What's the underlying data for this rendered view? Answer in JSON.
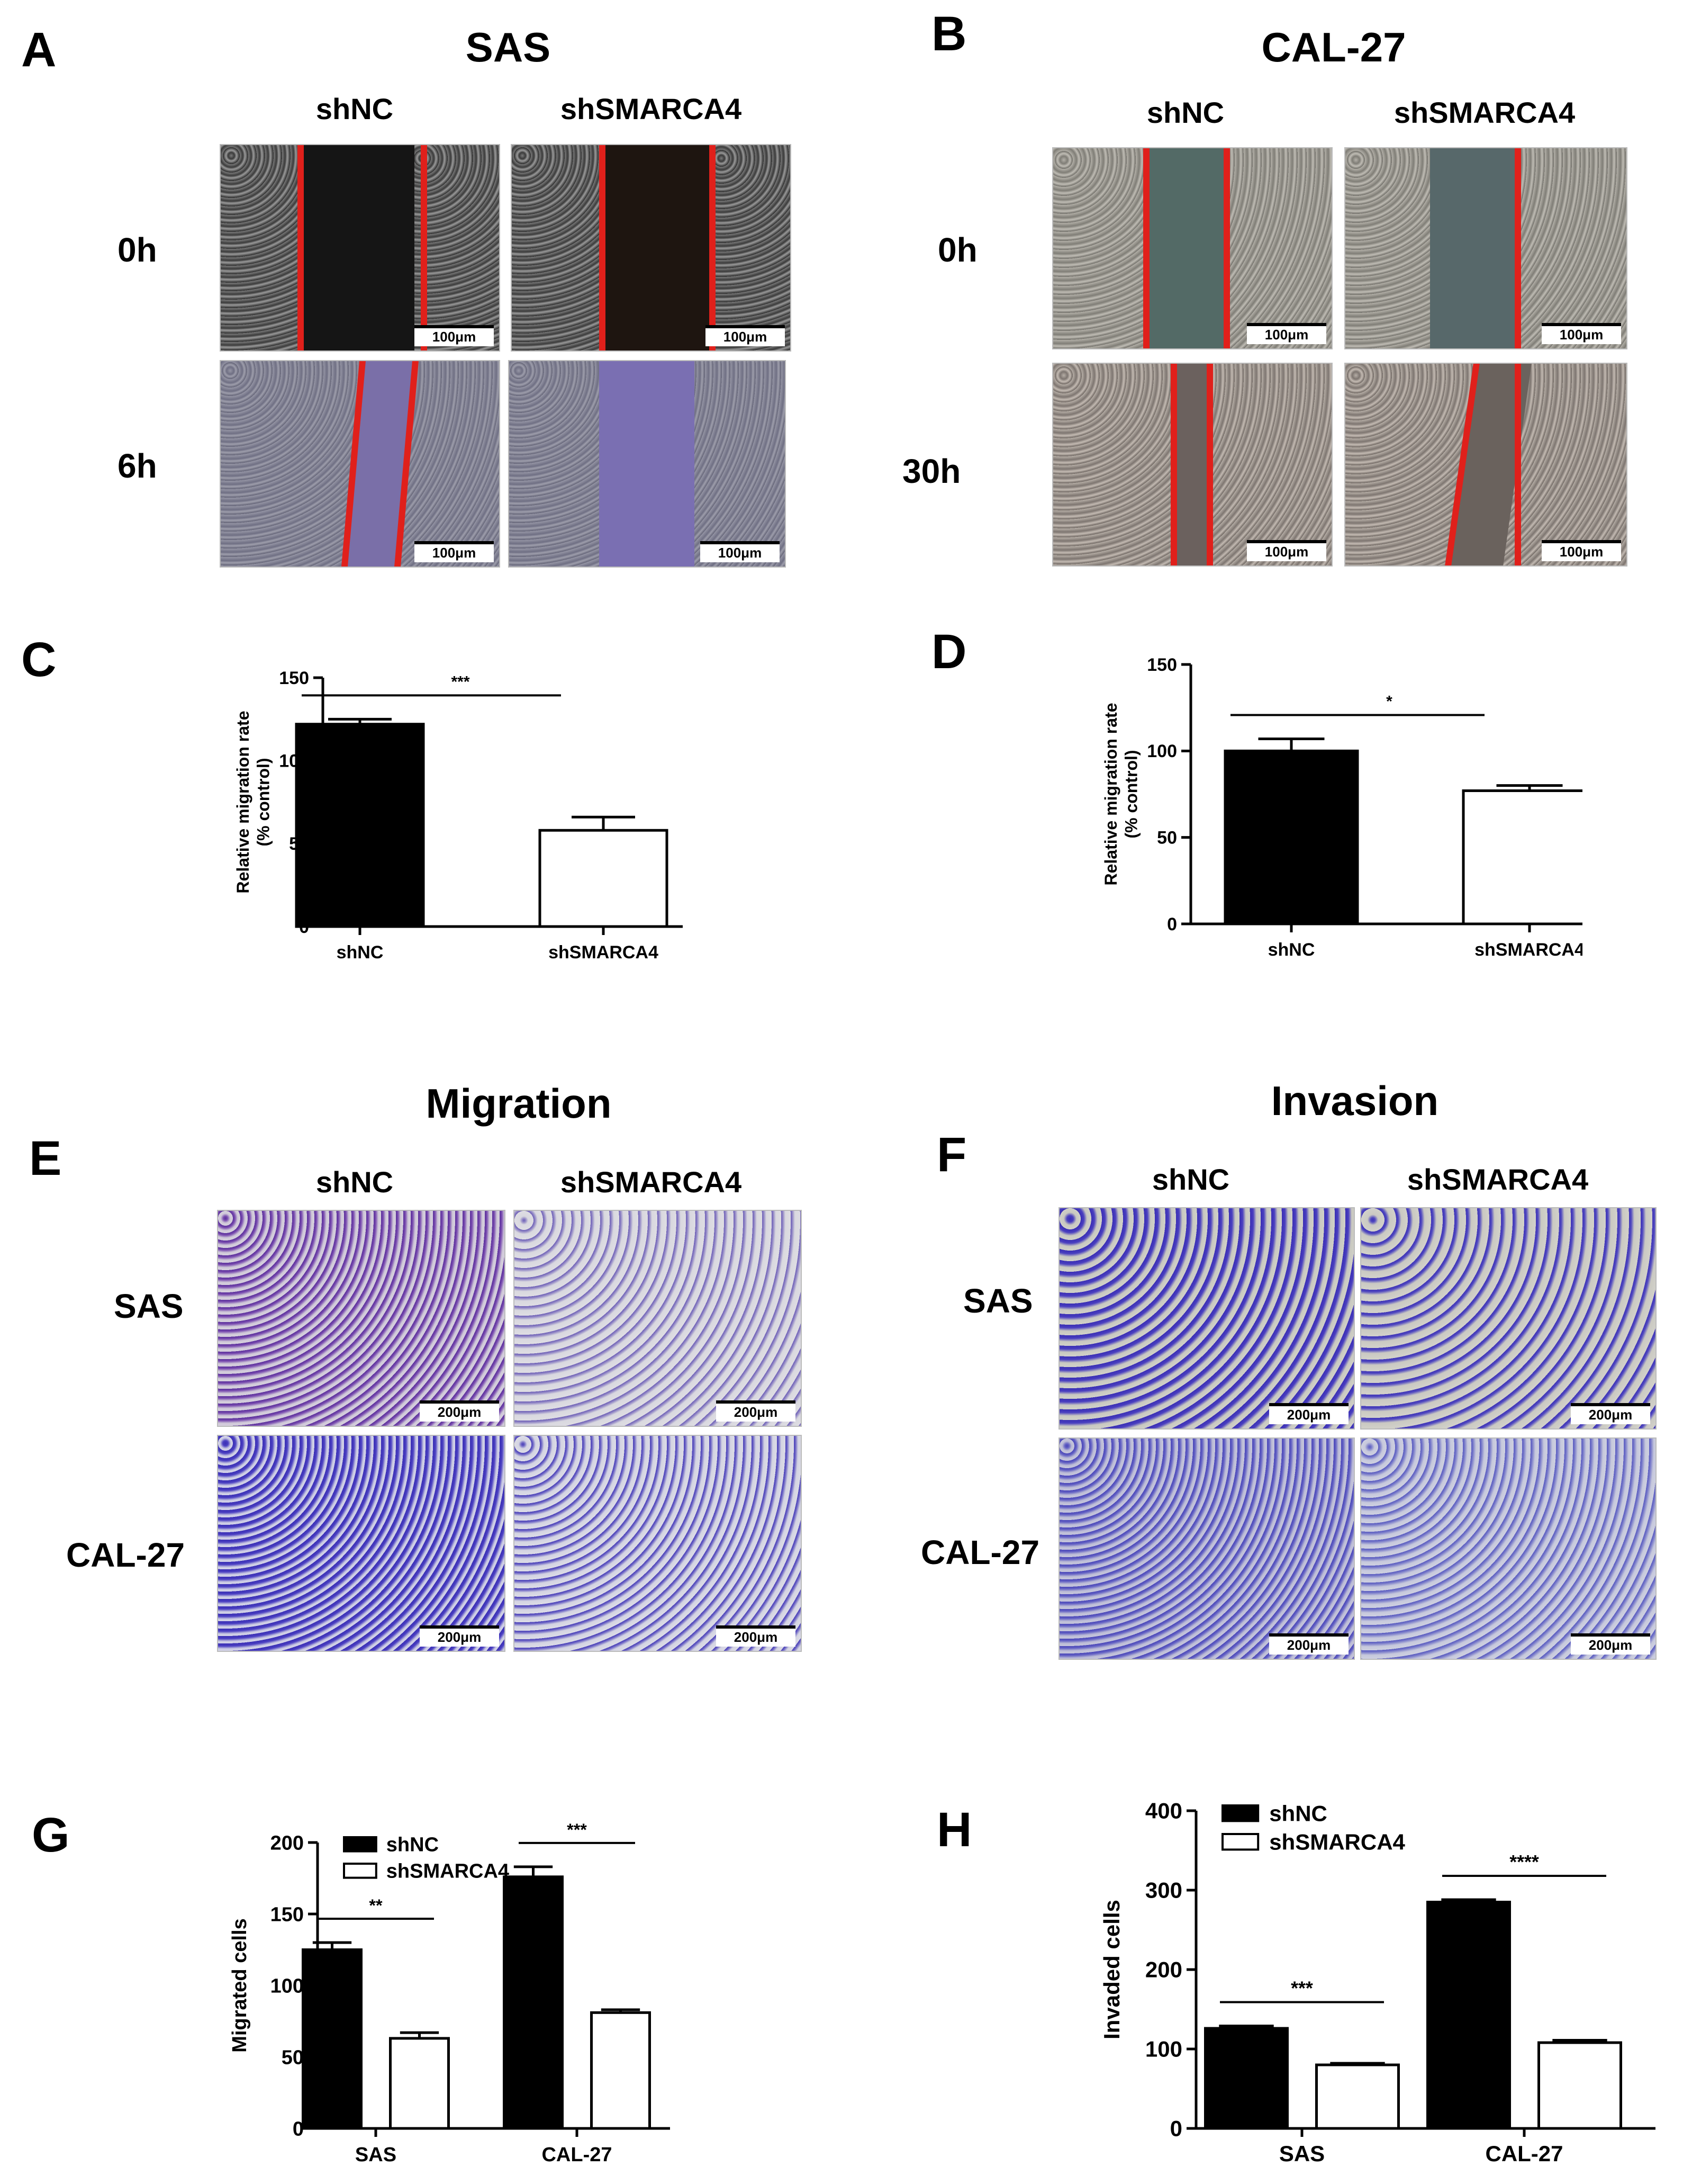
{
  "panels": {
    "A": {
      "label": "A",
      "title": "SAS",
      "col1": "shNC",
      "col2": "shSMARCA4",
      "row1": "0h",
      "row2": "6h",
      "scale": "100μm"
    },
    "B": {
      "label": "B",
      "title": "CAL-27",
      "col1": "shNC",
      "col2": "shSMARCA4",
      "row1": "0h",
      "row2": "30h",
      "scale": "100μm"
    },
    "C": {
      "label": "C"
    },
    "D": {
      "label": "D"
    },
    "E": {
      "label": "E",
      "title": "Migration",
      "col1": "shNC",
      "col2": "shSMARCA4",
      "row1": "SAS",
      "row2": "CAL-27",
      "scale": "200μm"
    },
    "F": {
      "label": "F",
      "title": "Invasion",
      "col1": "shNC",
      "col2": "shSMARCA4",
      "row1": "SAS",
      "row2": "CAL-27",
      "scale": "200μm"
    },
    "G": {
      "label": "G"
    },
    "H": {
      "label": "H"
    }
  },
  "colors": {
    "line": "#e0201b",
    "dark": "#111111",
    "gray": "#8c8c8c",
    "bluegray": "#7a7ca6",
    "stain": "#3a2fb4",
    "stainLight": "#d9d8df"
  },
  "chart_data": [
    {
      "id": "C",
      "type": "bar",
      "categories": [
        "shNC",
        "shSMARCA4"
      ],
      "values": [
        122,
        58
      ],
      "errors": [
        3,
        8
      ],
      "ylabel": "Relative migration rate (% control)",
      "ylim": [
        0,
        150
      ],
      "yticks": [
        0,
        50,
        100,
        150
      ],
      "significance": [
        {
          "from": 0,
          "to": 1,
          "label": "***"
        }
      ]
    },
    {
      "id": "D",
      "type": "bar",
      "categories": [
        "shNC",
        "shSMARCA4"
      ],
      "values": [
        100,
        77
      ],
      "errors": [
        7,
        3
      ],
      "ylabel": "Relative migration rate (% control)",
      "ylim": [
        0,
        150
      ],
      "yticks": [
        0,
        50,
        100,
        150
      ],
      "significance": [
        {
          "from": 0,
          "to": 1,
          "label": "*"
        }
      ]
    },
    {
      "id": "G",
      "type": "bar",
      "categories": [
        "SAS",
        "CAL-27"
      ],
      "legend": "top-left",
      "series": [
        {
          "name": "shNC",
          "values": [
            125,
            176
          ],
          "errors": [
            5,
            7
          ]
        },
        {
          "name": "shSMARCA4",
          "values": [
            63,
            81
          ],
          "errors": [
            4,
            2
          ]
        }
      ],
      "ylabel": "Migrated cells",
      "ylim": [
        0,
        200
      ],
      "yticks": [
        0,
        50,
        100,
        150,
        200
      ],
      "significance": [
        {
          "group": 0,
          "label": "**"
        },
        {
          "group": 1,
          "label": "***"
        }
      ]
    },
    {
      "id": "H",
      "type": "bar",
      "categories": [
        "SAS",
        "CAL-27"
      ],
      "legend": "top-left",
      "series": [
        {
          "name": "shNC",
          "values": [
            126,
            285
          ],
          "errors": [
            3,
            3
          ]
        },
        {
          "name": "shSMARCA4",
          "values": [
            80,
            108
          ],
          "errors": [
            2,
            3
          ]
        }
      ],
      "ylabel": "Invaded cells",
      "ylim": [
        0,
        400
      ],
      "yticks": [
        0,
        100,
        200,
        300,
        400
      ],
      "significance": [
        {
          "group": 0,
          "label": "***"
        },
        {
          "group": 1,
          "label": "****"
        }
      ]
    }
  ]
}
